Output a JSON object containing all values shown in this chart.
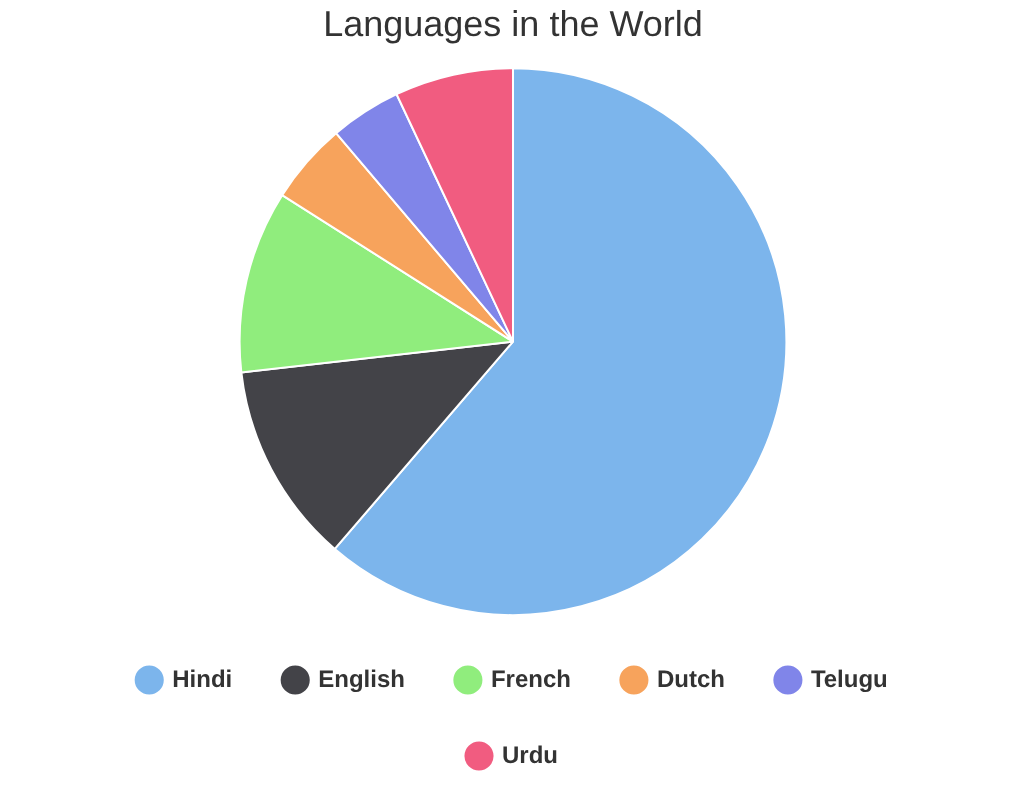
{
  "chart_data": {
    "type": "pie",
    "title": "Languages in the World",
    "categories": [
      "Hindi",
      "English",
      "French",
      "Dutch",
      "Telugu",
      "Urdu"
    ],
    "values": [
      61.3,
      11.9,
      10.8,
      4.8,
      4.2,
      7.0
    ],
    "colors": [
      "#7cb5ec",
      "#434348",
      "#90ed7d",
      "#f7a35c",
      "#8085e9",
      "#f15c80"
    ],
    "legend": "bottom"
  }
}
